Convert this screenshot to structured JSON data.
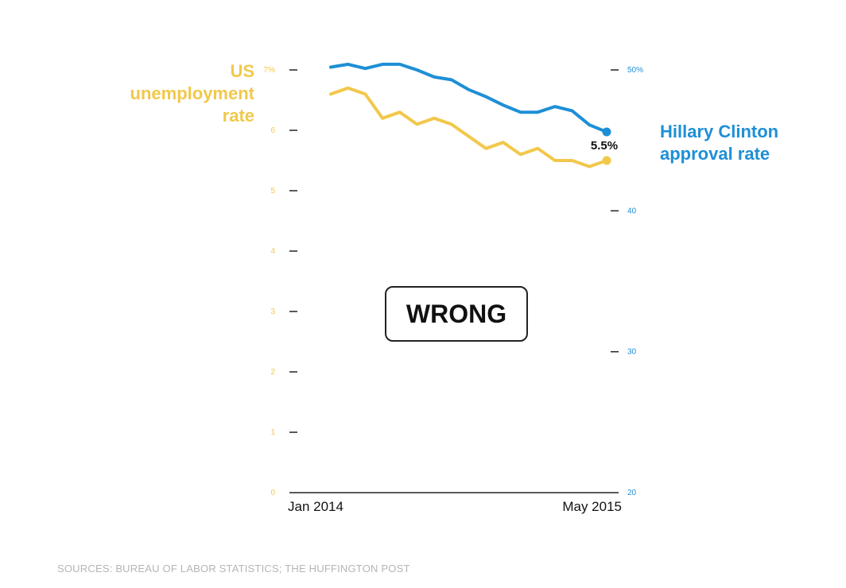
{
  "chart_data": {
    "type": "line",
    "x_start_label": "Jan 2014",
    "x_end_label": "May 2015",
    "left_axis": {
      "title_lines": [
        "US",
        "unemployment",
        "rate"
      ],
      "range": [
        0,
        7
      ],
      "ticks": [
        "0",
        "1",
        "2",
        "3",
        "4",
        "5",
        "6",
        "7%"
      ],
      "color": "#f2c84b"
    },
    "right_axis": {
      "title_lines": [
        "Hillary Clinton",
        "approval rate"
      ],
      "range": [
        20,
        50
      ],
      "ticks": [
        "20",
        "30",
        "40",
        "50%"
      ],
      "color": "#1e8fd6"
    },
    "series": [
      {
        "name": "US unemployment rate",
        "axis": "left",
        "color": "#f2c84b",
        "values": [
          6.6,
          6.7,
          6.6,
          6.2,
          6.3,
          6.1,
          6.2,
          6.1,
          5.9,
          5.7,
          5.8,
          5.6,
          5.7,
          5.5,
          5.5,
          5.4,
          5.5
        ]
      },
      {
        "name": "Hillary Clinton approval rate",
        "axis": "right",
        "color": "#1e8fd6",
        "values": [
          50.2,
          50.4,
          50.1,
          50.4,
          50.4,
          50.0,
          49.5,
          49.3,
          48.6,
          48.1,
          47.5,
          47.0,
          47.0,
          47.4,
          47.1,
          46.1,
          45.6
        ]
      }
    ],
    "end_label": "5.5%",
    "annotation": "WRONG"
  },
  "footer": {
    "source": "SOURCES: BUREAU OF LABOR STATISTICS; THE HUFFINGTON POST"
  }
}
